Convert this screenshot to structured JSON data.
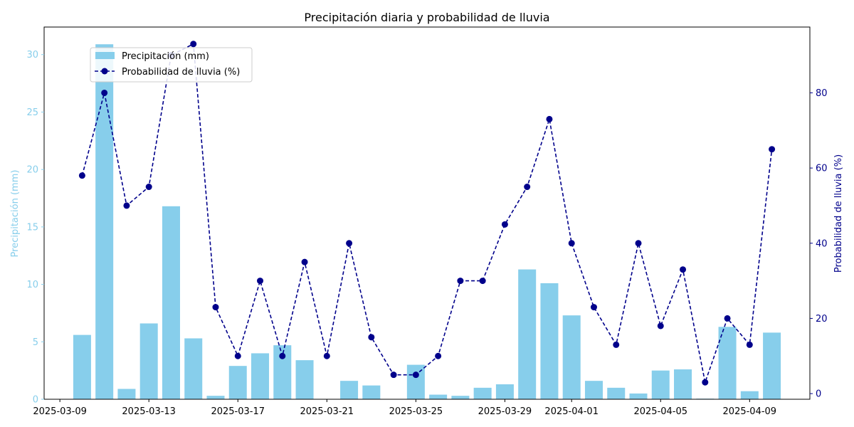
{
  "chart_data": {
    "type": "bar",
    "title": "Precipitación diaria y probabilidad de lluvia",
    "dates": [
      "2025-03-10",
      "2025-03-11",
      "2025-03-12",
      "2025-03-13",
      "2025-03-14",
      "2025-03-15",
      "2025-03-16",
      "2025-03-17",
      "2025-03-18",
      "2025-03-19",
      "2025-03-20",
      "2025-03-21",
      "2025-03-22",
      "2025-03-23",
      "2025-03-24",
      "2025-03-25",
      "2025-03-26",
      "2025-03-27",
      "2025-03-28",
      "2025-03-29",
      "2025-03-30",
      "2025-03-31",
      "2025-04-01",
      "2025-04-02",
      "2025-04-03",
      "2025-04-04",
      "2025-04-05",
      "2025-04-06",
      "2025-04-07",
      "2025-04-08",
      "2025-04-09",
      "2025-04-10"
    ],
    "series": [
      {
        "name": "Precipitación (mm)",
        "type": "bar",
        "axis": "left",
        "color": "#87ceeb",
        "values": [
          5.6,
          30.9,
          0.9,
          6.6,
          16.8,
          5.3,
          0.3,
          2.9,
          4.0,
          4.7,
          3.4,
          0.0,
          1.6,
          1.2,
          0.0,
          3.0,
          0.4,
          0.3,
          1.0,
          1.3,
          11.3,
          10.1,
          7.3,
          1.6,
          1.0,
          0.5,
          2.5,
          2.6,
          0.05,
          6.3,
          0.7,
          5.8
        ]
      },
      {
        "name": "Probabilidad de lluvia (%)",
        "type": "line",
        "axis": "right",
        "color": "#00008b",
        "values": [
          58,
          80,
          50,
          55,
          90,
          93,
          23,
          10,
          30,
          10,
          35,
          10,
          40,
          15,
          5,
          5,
          10,
          30,
          30,
          45,
          55,
          73,
          40,
          23,
          13,
          40,
          18,
          33,
          3,
          20,
          13,
          65
        ]
      }
    ],
    "x_ticks": [
      "2025-03-09",
      "2025-03-13",
      "2025-03-17",
      "2025-03-21",
      "2025-03-25",
      "2025-03-29",
      "2025-04-01",
      "2025-04-05",
      "2025-04-09"
    ],
    "y_left": {
      "label": "Precipitación (mm)",
      "ticks": [
        0,
        5,
        10,
        15,
        20,
        25,
        30
      ],
      "lim": [
        0,
        32.4
      ],
      "color": "#87ceeb"
    },
    "y_right": {
      "label": "Probabilidad de lluvia (%)",
      "ticks": [
        0,
        20,
        40,
        60,
        80
      ],
      "lim": [
        -1.5,
        97.5
      ],
      "color": "#00008b"
    },
    "x_lim": [
      "2025-03-08T07:00",
      "2025-04-11T17:00"
    ],
    "grid": false,
    "legend_position": "upper-left"
  }
}
